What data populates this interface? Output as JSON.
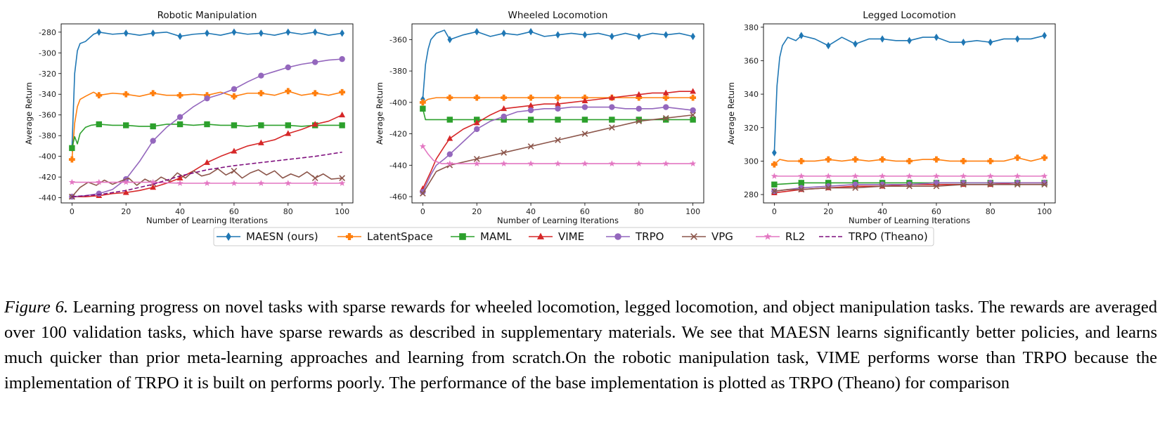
{
  "caption": {
    "label": "Figure 6.",
    "text": "Learning progress on novel tasks with sparse rewards for wheeled locomotion, legged locomotion, and object manipulation tasks. The rewards are averaged over 100 validation tasks, which have sparse rewards as described in supplementary materials. We see that MAESN learns significantly better policies, and learns much quicker than prior meta-learning approaches and learning from scratch.On the robotic manipulation task, VIME performs worse than TRPO because the implementation of TRPO it is built on performs poorly. The performance of the base implementation is plotted as TRPO (Theano) for comparison"
  },
  "legend": {
    "placement": "bottom-center",
    "entries": [
      {
        "label": "MAESN (ours)",
        "color": "#1f77b4",
        "marker": "diamond",
        "dash": "solid"
      },
      {
        "label": "LatentSpace",
        "color": "#ff7f0e",
        "marker": "plus",
        "dash": "solid"
      },
      {
        "label": "MAML",
        "color": "#2ca02c",
        "marker": "square",
        "dash": "solid"
      },
      {
        "label": "VIME",
        "color": "#d62728",
        "marker": "triangle",
        "dash": "solid"
      },
      {
        "label": "TRPO",
        "color": "#9467bd",
        "marker": "circle",
        "dash": "solid"
      },
      {
        "label": "VPG",
        "color": "#8c564b",
        "marker": "x",
        "dash": "solid"
      },
      {
        "label": "RL2",
        "color": "#e377c2",
        "marker": "star",
        "dash": "solid"
      },
      {
        "label": "TRPO (Theano)",
        "color": "#7f0f7e",
        "marker": "none",
        "dash": "dashed"
      }
    ]
  },
  "chart_data": [
    {
      "type": "line",
      "title": "Robotic Manipulation",
      "xlabel": "Number of Learning Iterations",
      "ylabel": "Average Return",
      "xlim": [
        -4,
        104
      ],
      "ylim": [
        -445,
        -272
      ],
      "xticks": [
        0,
        20,
        40,
        60,
        80,
        100
      ],
      "yticks": [
        -440,
        -420,
        -400,
        -380,
        -360,
        -340,
        -320,
        -300,
        -280
      ],
      "grid": false,
      "series": [
        {
          "name": "MAESN (ours)",
          "x": [
            0,
            1,
            2,
            3,
            5,
            8,
            10,
            15,
            20,
            25,
            30,
            35,
            40,
            45,
            50,
            55,
            60,
            65,
            70,
            75,
            80,
            85,
            90,
            95,
            100
          ],
          "values": [
            -392,
            -320,
            -298,
            -291,
            -289,
            -282,
            -280,
            -282,
            -281,
            -283,
            -281,
            -280,
            -284,
            -282,
            -281,
            -283,
            -280,
            -282,
            -281,
            -283,
            -280,
            -282,
            -280,
            -283,
            -281
          ]
        },
        {
          "name": "LatentSpace",
          "x": [
            0,
            1,
            2,
            3,
            5,
            8,
            10,
            15,
            20,
            25,
            30,
            35,
            40,
            45,
            50,
            55,
            60,
            65,
            70,
            75,
            80,
            85,
            90,
            95,
            100
          ],
          "values": [
            -403,
            -368,
            -352,
            -345,
            -342,
            -338,
            -341,
            -339,
            -340,
            -342,
            -339,
            -341,
            -341,
            -340,
            -341,
            -338,
            -342,
            -339,
            -339,
            -341,
            -337,
            -341,
            -339,
            -341,
            -338
          ]
        },
        {
          "name": "MAML",
          "x": [
            0,
            1,
            2,
            3,
            5,
            7,
            10,
            15,
            20,
            25,
            30,
            35,
            40,
            45,
            50,
            55,
            60,
            65,
            70,
            75,
            80,
            85,
            90,
            95,
            100
          ],
          "values": [
            -392,
            -381,
            -388,
            -378,
            -372,
            -370,
            -369,
            -370,
            -370,
            -371,
            -371,
            -369,
            -369,
            -370,
            -369,
            -370,
            -370,
            -371,
            -370,
            -370,
            -370,
            -371,
            -370,
            -370,
            -370
          ]
        },
        {
          "name": "VIME",
          "x": [
            0,
            5,
            10,
            15,
            20,
            25,
            30,
            35,
            40,
            45,
            50,
            55,
            60,
            65,
            70,
            75,
            80,
            85,
            90,
            95,
            100
          ],
          "values": [
            -439,
            -439,
            -438,
            -436,
            -435,
            -433,
            -430,
            -426,
            -421,
            -414,
            -406,
            -400,
            -395,
            -390,
            -387,
            -384,
            -378,
            -374,
            -369,
            -366,
            -360
          ]
        },
        {
          "name": "TRPO",
          "x": [
            0,
            5,
            10,
            15,
            20,
            25,
            30,
            35,
            40,
            45,
            50,
            55,
            60,
            65,
            70,
            75,
            80,
            85,
            90,
            95,
            100
          ],
          "values": [
            -439,
            -438,
            -436,
            -432,
            -422,
            -405,
            -385,
            -372,
            -362,
            -352,
            -344,
            -340,
            -335,
            -328,
            -322,
            -318,
            -314,
            -311,
            -309,
            -307,
            -306
          ]
        },
        {
          "name": "VPG",
          "x": [
            0,
            3,
            6,
            9,
            12,
            15,
            18,
            21,
            24,
            27,
            30,
            33,
            36,
            39,
            42,
            45,
            48,
            51,
            54,
            57,
            60,
            63,
            66,
            69,
            72,
            75,
            78,
            81,
            84,
            87,
            90,
            93,
            96,
            100
          ],
          "values": [
            -439,
            -430,
            -425,
            -428,
            -423,
            -427,
            -424,
            -421,
            -428,
            -422,
            -426,
            -420,
            -424,
            -416,
            -421,
            -414,
            -419,
            -417,
            -412,
            -418,
            -414,
            -421,
            -416,
            -413,
            -418,
            -414,
            -421,
            -417,
            -420,
            -415,
            -421,
            -417,
            -422,
            -421
          ]
        },
        {
          "name": "RL2",
          "x": [
            0,
            10,
            20,
            30,
            40,
            50,
            60,
            70,
            80,
            90,
            100
          ],
          "values": [
            -425,
            -425,
            -425,
            -425,
            -426,
            -426,
            -426,
            -426,
            -426,
            -426,
            -426
          ]
        },
        {
          "name": "TRPO (Theano)",
          "x": [
            0,
            10,
            20,
            30,
            40,
            50,
            60,
            70,
            80,
            90,
            100
          ],
          "values": [
            -439,
            -437,
            -433,
            -427,
            -419,
            -413,
            -409,
            -406,
            -403,
            -400,
            -396
          ]
        }
      ]
    },
    {
      "type": "line",
      "title": "Wheeled Locomotion",
      "xlabel": "Number of Learning Iterations",
      "ylabel": "Average Return",
      "xlim": [
        -4,
        104
      ],
      "ylim": [
        -464,
        -350
      ],
      "xticks": [
        0,
        20,
        40,
        60,
        80,
        100
      ],
      "yticks": [
        -460,
        -440,
        -420,
        -400,
        -380,
        -360
      ],
      "grid": false,
      "series": [
        {
          "name": "MAESN (ours)",
          "x": [
            0,
            1,
            2,
            3,
            5,
            8,
            10,
            15,
            20,
            25,
            30,
            35,
            40,
            45,
            50,
            55,
            60,
            65,
            70,
            75,
            80,
            85,
            90,
            95,
            100
          ],
          "values": [
            -398,
            -376,
            -366,
            -360,
            -356,
            -354,
            -360,
            -357,
            -355,
            -358,
            -356,
            -357,
            -355,
            -358,
            -357,
            -356,
            -357,
            -356,
            -358,
            -356,
            -358,
            -356,
            -357,
            -356,
            -358
          ]
        },
        {
          "name": "LatentSpace",
          "x": [
            0,
            2,
            5,
            10,
            15,
            20,
            25,
            30,
            35,
            40,
            45,
            50,
            55,
            60,
            65,
            70,
            75,
            80,
            85,
            90,
            95,
            100
          ],
          "values": [
            -400,
            -398,
            -397,
            -397,
            -397,
            -397,
            -397,
            -397,
            -397,
            -397,
            -397,
            -397,
            -397,
            -397,
            -397,
            -397,
            -397,
            -397,
            -397,
            -397,
            -397,
            -397
          ]
        },
        {
          "name": "MAML",
          "x": [
            0,
            1,
            3,
            5,
            10,
            15,
            20,
            30,
            40,
            50,
            60,
            70,
            80,
            90,
            100
          ],
          "values": [
            -404,
            -411,
            -411,
            -411,
            -411,
            -411,
            -411,
            -411,
            -411,
            -411,
            -411,
            -411,
            -411,
            -411,
            -411
          ]
        },
        {
          "name": "VIME",
          "x": [
            0,
            3,
            5,
            8,
            10,
            15,
            20,
            25,
            30,
            35,
            40,
            45,
            50,
            55,
            60,
            65,
            70,
            75,
            80,
            85,
            90,
            95,
            100
          ],
          "values": [
            -455,
            -444,
            -436,
            -428,
            -423,
            -417,
            -413,
            -408,
            -404,
            -403,
            -402,
            -401,
            -401,
            -400,
            -399,
            -398,
            -397,
            -396,
            -395,
            -394,
            -394,
            -393,
            -393
          ]
        },
        {
          "name": "TRPO",
          "x": [
            0,
            3,
            5,
            8,
            10,
            15,
            20,
            25,
            30,
            35,
            40,
            45,
            50,
            55,
            60,
            65,
            70,
            75,
            80,
            85,
            90,
            95,
            100
          ],
          "values": [
            -457,
            -446,
            -440,
            -436,
            -433,
            -425,
            -417,
            -412,
            -409,
            -406,
            -405,
            -404,
            -404,
            -403,
            -403,
            -403,
            -403,
            -404,
            -404,
            -404,
            -403,
            -404,
            -405
          ]
        },
        {
          "name": "VPG",
          "x": [
            0,
            5,
            10,
            20,
            30,
            40,
            50,
            60,
            70,
            80,
            90,
            100
          ],
          "values": [
            -458,
            -444,
            -440,
            -436,
            -432,
            -428,
            -424,
            -420,
            -416,
            -412,
            -410,
            -408
          ]
        },
        {
          "name": "RL2",
          "x": [
            0,
            2,
            4,
            7,
            10,
            20,
            30,
            40,
            50,
            60,
            70,
            80,
            90,
            100
          ],
          "values": [
            -428,
            -433,
            -437,
            -439,
            -439,
            -439,
            -439,
            -439,
            -439,
            -439,
            -439,
            -439,
            -439,
            -439
          ]
        }
      ]
    },
    {
      "type": "line",
      "title": "Legged Locomotion",
      "xlabel": "Number of Learning Iterations",
      "ylabel": "Average Return",
      "xlim": [
        -4,
        104
      ],
      "ylim": [
        275,
        382
      ],
      "xticks": [
        0,
        20,
        40,
        60,
        80,
        100
      ],
      "yticks": [
        280,
        300,
        320,
        340,
        360,
        380
      ],
      "grid": false,
      "series": [
        {
          "name": "MAESN (ours)",
          "x": [
            0,
            1,
            2,
            3,
            5,
            8,
            10,
            15,
            20,
            25,
            30,
            35,
            40,
            45,
            50,
            55,
            60,
            65,
            70,
            75,
            80,
            85,
            90,
            95,
            100
          ],
          "values": [
            305,
            345,
            362,
            369,
            374,
            372,
            375,
            373,
            369,
            374,
            370,
            373,
            373,
            372,
            372,
            374,
            374,
            371,
            371,
            372,
            371,
            373,
            373,
            373,
            375
          ]
        },
        {
          "name": "LatentSpace",
          "x": [
            0,
            2,
            5,
            10,
            15,
            20,
            25,
            30,
            35,
            40,
            45,
            50,
            55,
            60,
            65,
            70,
            75,
            80,
            85,
            90,
            95,
            100
          ],
          "values": [
            298,
            301,
            300,
            300,
            300,
            301,
            300,
            301,
            300,
            301,
            300,
            300,
            301,
            301,
            300,
            300,
            300,
            300,
            300,
            302,
            300,
            302
          ]
        },
        {
          "name": "MAML",
          "x": [
            0,
            10,
            20,
            30,
            40,
            50,
            60,
            70,
            80,
            90,
            100
          ],
          "values": [
            286,
            287,
            287,
            287,
            287,
            287,
            287,
            287,
            287,
            287,
            287
          ]
        },
        {
          "name": "VIME",
          "x": [
            0,
            5,
            10,
            20,
            30,
            40,
            50,
            60,
            70,
            80,
            90,
            100
          ],
          "values": [
            281,
            282,
            283,
            284,
            285,
            285,
            286,
            286,
            286,
            286,
            287,
            287
          ]
        },
        {
          "name": "TRPO",
          "x": [
            0,
            5,
            10,
            20,
            30,
            40,
            50,
            60,
            70,
            80,
            90,
            100
          ],
          "values": [
            282,
            283,
            284,
            285,
            286,
            286,
            286,
            287,
            287,
            287,
            287,
            287
          ]
        },
        {
          "name": "VPG",
          "x": [
            0,
            5,
            10,
            20,
            30,
            40,
            50,
            60,
            70,
            80,
            90,
            100
          ],
          "values": [
            282,
            283,
            283,
            284,
            284,
            285,
            285,
            285,
            286,
            286,
            286,
            286
          ]
        },
        {
          "name": "RL2",
          "x": [
            0,
            10,
            20,
            30,
            40,
            50,
            60,
            70,
            80,
            90,
            100
          ],
          "values": [
            291,
            291,
            291,
            291,
            291,
            291,
            291,
            291,
            291,
            291,
            291
          ]
        }
      ]
    }
  ]
}
